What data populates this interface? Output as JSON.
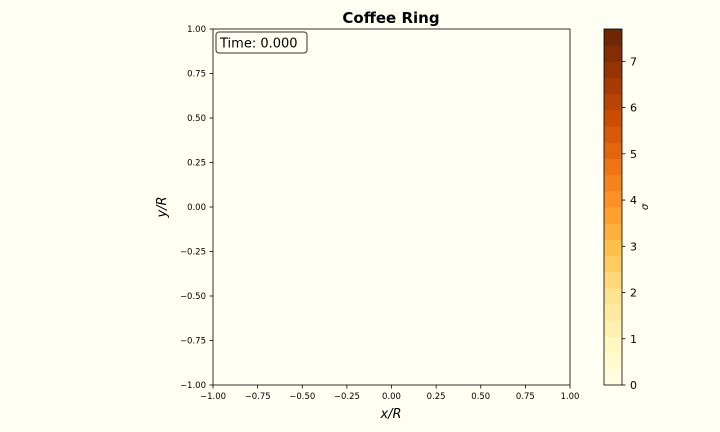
{
  "colors": {
    "figure_background": "#fffff4",
    "axes_background": "#fffff4",
    "colormap": "YlOrBr",
    "colormap_stops": [
      "#fffee5",
      "#fff7bc",
      "#fee391",
      "#fec44f",
      "#fe9929",
      "#ec7014",
      "#cc4c02",
      "#993404",
      "#662506"
    ]
  },
  "chart_data": [
    {
      "type": "heatmap",
      "title": "Coffee Ring",
      "xlabel": "x/R",
      "ylabel": "y/R",
      "xlim": [
        -1.0,
        1.0
      ],
      "ylim": [
        -1.0,
        1.0
      ],
      "xticks": [
        -1.0,
        -0.75,
        -0.5,
        -0.25,
        0.0,
        0.25,
        0.5,
        0.75,
        1.0
      ],
      "xtick_labels": [
        "−1.00",
        "−0.75",
        "−0.50",
        "−0.25",
        "0.00",
        "0.25",
        "0.50",
        "0.75",
        "1.00"
      ],
      "yticks": [
        -1.0,
        -0.75,
        -0.5,
        -0.25,
        0.0,
        0.25,
        0.5,
        0.75,
        1.0
      ],
      "ytick_labels": [
        "−1.00",
        "−0.75",
        "−0.50",
        "−0.25",
        "0.00",
        "0.25",
        "0.50",
        "0.75",
        "1.00"
      ],
      "grid": false,
      "annotation": "Time: 0.000",
      "colorbar": {
        "label": "σ",
        "range": [
          0,
          7.7
        ],
        "levels": 22,
        "ticks": [
          0,
          1,
          2,
          3,
          4,
          5,
          6,
          7
        ],
        "tick_labels": [
          "0",
          "1",
          "2",
          "3",
          "4",
          "5",
          "6",
          "7"
        ]
      },
      "values": []
    }
  ]
}
